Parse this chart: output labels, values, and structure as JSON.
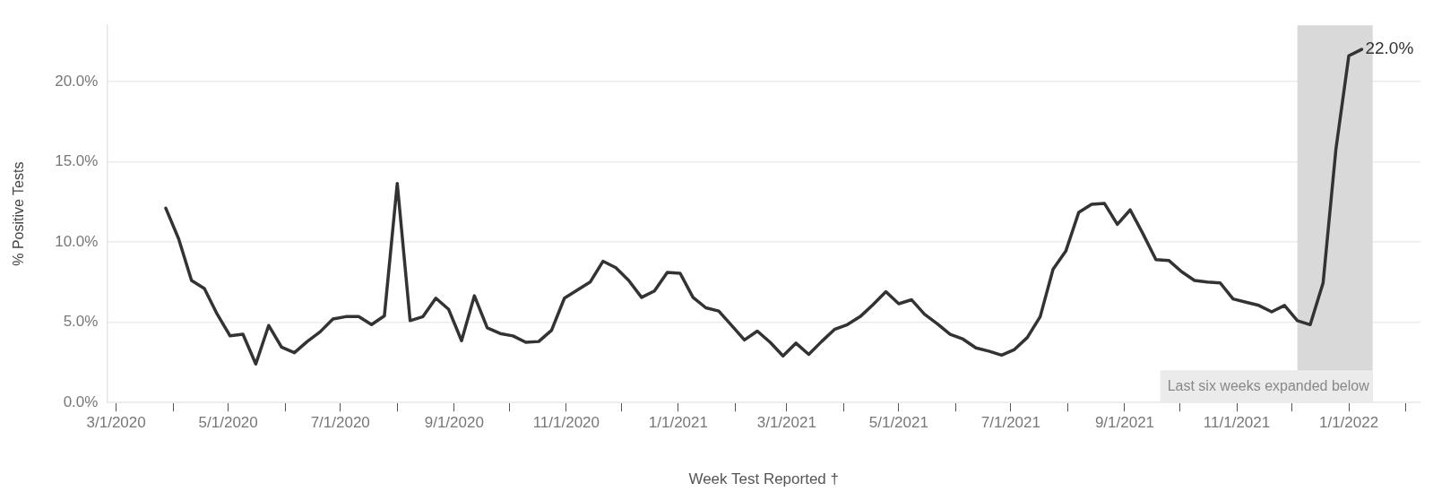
{
  "chart_data": {
    "type": "line",
    "xlabel": "Week Test Reported †",
    "ylabel": "% Positive Tests",
    "x": [
      "2020-03-28",
      "2020-04-04",
      "2020-04-11",
      "2020-04-18",
      "2020-04-25",
      "2020-05-02",
      "2020-05-09",
      "2020-05-16",
      "2020-05-23",
      "2020-05-30",
      "2020-06-06",
      "2020-06-13",
      "2020-06-20",
      "2020-06-27",
      "2020-07-04",
      "2020-07-11",
      "2020-07-18",
      "2020-07-25",
      "2020-08-01",
      "2020-08-08",
      "2020-08-15",
      "2020-08-22",
      "2020-08-29",
      "2020-09-05",
      "2020-09-12",
      "2020-09-19",
      "2020-09-26",
      "2020-10-03",
      "2020-10-10",
      "2020-10-17",
      "2020-10-24",
      "2020-10-31",
      "2020-11-07",
      "2020-11-14",
      "2020-11-21",
      "2020-11-28",
      "2020-12-05",
      "2020-12-12",
      "2020-12-19",
      "2020-12-26",
      "2021-01-02",
      "2021-01-09",
      "2021-01-16",
      "2021-01-23",
      "2021-01-30",
      "2021-02-06",
      "2021-02-13",
      "2021-02-20",
      "2021-02-27",
      "2021-03-06",
      "2021-03-13",
      "2021-03-20",
      "2021-03-27",
      "2021-04-03",
      "2021-04-10",
      "2021-04-17",
      "2021-04-24",
      "2021-05-01",
      "2021-05-08",
      "2021-05-15",
      "2021-05-22",
      "2021-05-29",
      "2021-06-05",
      "2021-06-12",
      "2021-06-19",
      "2021-06-26",
      "2021-07-03",
      "2021-07-10",
      "2021-07-17",
      "2021-07-24",
      "2021-07-31",
      "2021-08-07",
      "2021-08-14",
      "2021-08-21",
      "2021-08-28",
      "2021-09-04",
      "2021-09-11",
      "2021-09-18",
      "2021-09-25",
      "2021-10-02",
      "2021-10-09",
      "2021-10-16",
      "2021-10-23",
      "2021-10-30",
      "2021-11-06",
      "2021-11-13",
      "2021-11-20",
      "2021-11-27",
      "2021-12-04",
      "2021-12-11",
      "2021-12-18",
      "2021-12-25",
      "2022-01-01",
      "2022-01-08"
    ],
    "series": [
      {
        "color": "#333333",
        "values": [
          12.1,
          10.2,
          7.6,
          7.1,
          5.5,
          4.15,
          4.25,
          2.4,
          4.8,
          3.45,
          3.1,
          3.8,
          4.4,
          5.2,
          5.35,
          5.35,
          4.85,
          5.4,
          13.65,
          5.1,
          5.35,
          6.5,
          5.8,
          3.85,
          6.65,
          4.65,
          4.3,
          4.15,
          3.75,
          3.8,
          4.5,
          6.5,
          7.0,
          7.5,
          8.8,
          8.4,
          7.6,
          6.55,
          6.95,
          8.1,
          8.05,
          6.55,
          5.9,
          5.7,
          4.8,
          3.9,
          4.45,
          3.75,
          2.9,
          3.7,
          3.0,
          3.8,
          4.55,
          4.85,
          5.35,
          6.1,
          6.9,
          6.15,
          6.4,
          5.5,
          4.9,
          4.25,
          3.95,
          3.4,
          3.2,
          2.95,
          3.3,
          4.05,
          5.35,
          8.3,
          9.45,
          11.85,
          12.35,
          12.4,
          11.1,
          12.0,
          10.5,
          8.9,
          8.85,
          8.15,
          7.6,
          7.5,
          7.45,
          6.45,
          6.25,
          6.05,
          5.65,
          6.05,
          5.1,
          4.85,
          7.45,
          15.8,
          21.6,
          22.0
        ],
        "value_labels": [
          null,
          null,
          null,
          null,
          null,
          null,
          null,
          null,
          null,
          null,
          null,
          null,
          null,
          null,
          null,
          null,
          null,
          null,
          null,
          null,
          null,
          null,
          null,
          null,
          null,
          null,
          null,
          null,
          null,
          null,
          null,
          null,
          null,
          null,
          null,
          null,
          null,
          null,
          null,
          null,
          null,
          null,
          null,
          null,
          null,
          null,
          null,
          null,
          null,
          null,
          null,
          null,
          null,
          null,
          null,
          null,
          null,
          null,
          null,
          null,
          null,
          null,
          null,
          null,
          null,
          null,
          null,
          null,
          null,
          null,
          null,
          null,
          null,
          null,
          null,
          null,
          null,
          null,
          null,
          null,
          null,
          null,
          null,
          null,
          null,
          null,
          null,
          null,
          null,
          null,
          null,
          null,
          null,
          "22.0%"
        ]
      }
    ],
    "xlim": [
      "2020-02-25",
      "2022-02-09"
    ],
    "xticks": [
      {
        "value": "2020-03-01",
        "label": "3/1/2020"
      },
      {
        "value": "2020-04-01",
        "label": null
      },
      {
        "value": "2020-05-01",
        "label": "5/1/2020"
      },
      {
        "value": "2020-06-01",
        "label": null
      },
      {
        "value": "2020-07-01",
        "label": "7/1/2020"
      },
      {
        "value": "2020-08-01",
        "label": null
      },
      {
        "value": "2020-09-01",
        "label": "9/1/2020"
      },
      {
        "value": "2020-10-01",
        "label": null
      },
      {
        "value": "2020-11-01",
        "label": "11/1/2020"
      },
      {
        "value": "2020-12-01",
        "label": null
      },
      {
        "value": "2021-01-01",
        "label": "1/1/2021"
      },
      {
        "value": "2021-02-01",
        "label": null
      },
      {
        "value": "2021-03-01",
        "label": "3/1/2021"
      },
      {
        "value": "2021-04-01",
        "label": null
      },
      {
        "value": "2021-05-01",
        "label": "5/1/2021"
      },
      {
        "value": "2021-06-01",
        "label": null
      },
      {
        "value": "2021-07-01",
        "label": "7/1/2021"
      },
      {
        "value": "2021-08-01",
        "label": null
      },
      {
        "value": "2021-09-01",
        "label": "9/1/2021"
      },
      {
        "value": "2021-10-01",
        "label": null
      },
      {
        "value": "2021-11-01",
        "label": "11/1/2021"
      },
      {
        "value": "2021-12-01",
        "label": null
      },
      {
        "value": "2022-01-01",
        "label": "1/1/2022"
      },
      {
        "value": "2022-02-01",
        "label": null
      }
    ],
    "ylim": [
      0,
      23.5
    ],
    "yticks": [
      {
        "value": 0,
        "label": "0.0%"
      },
      {
        "value": 5,
        "label": "5.0%"
      },
      {
        "value": 10,
        "label": "10.0%"
      },
      {
        "value": 15,
        "label": "15.0%"
      },
      {
        "value": 20,
        "label": "20.0%"
      }
    ],
    "bands": [
      {
        "axis": "x",
        "from": "2021-12-04",
        "to": "2022-01-14",
        "label": "Last six weeks expanded below",
        "color": "#d9d9d9"
      }
    ],
    "grid": "y",
    "legend": false,
    "marker": "none",
    "line_style": "solid"
  }
}
